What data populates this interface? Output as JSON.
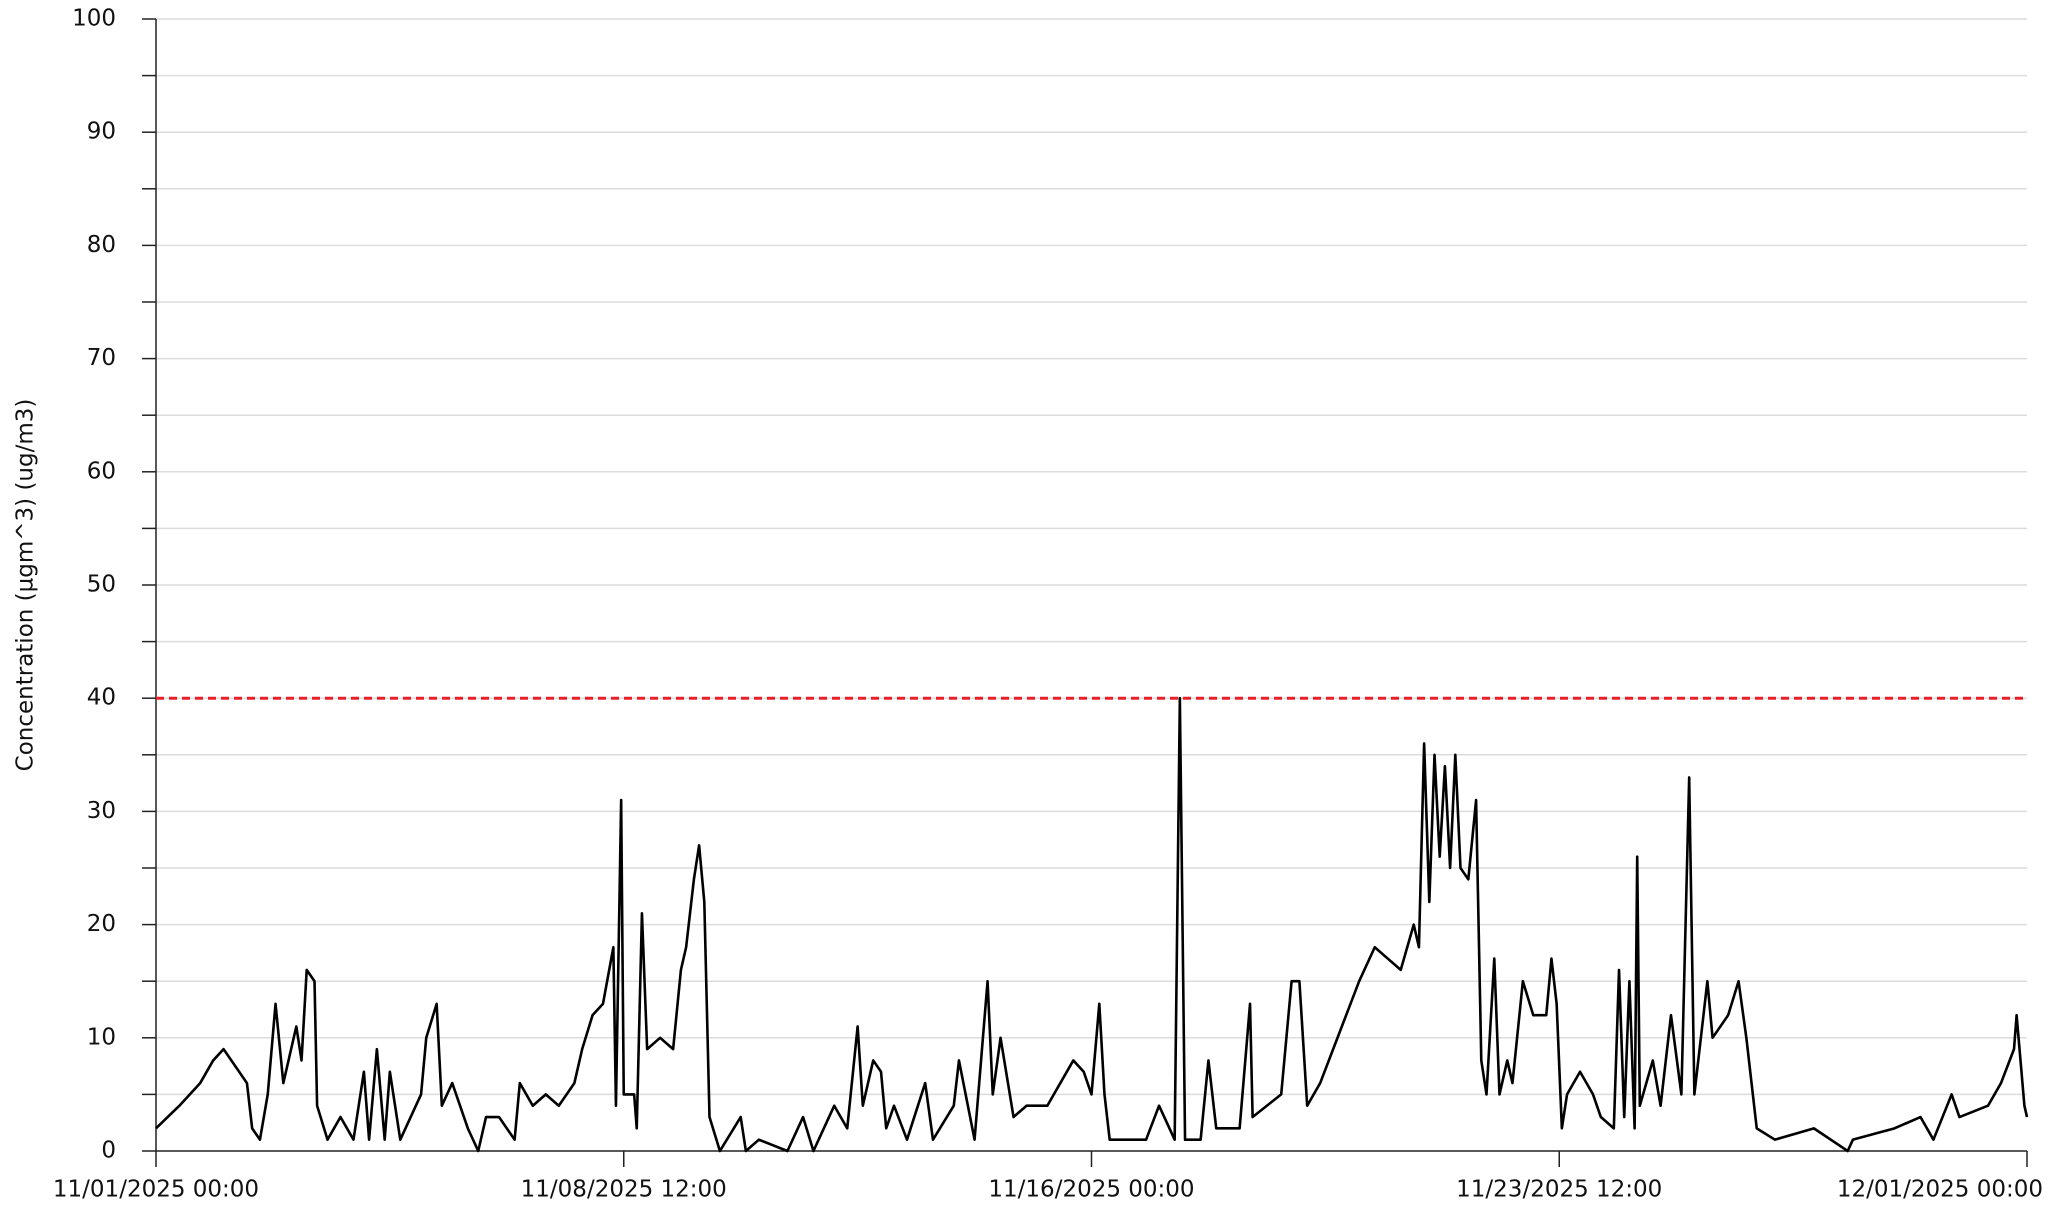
{
  "chart_data": {
    "type": "line",
    "ylabel": "Concentration (µgm^3) (ug/m3)",
    "xlim": [
      "11/01/2025 00:00",
      "12/01/2025 00:00"
    ],
    "xticks": [
      "11/01/2025 00:00",
      "11/08/2025 12:00",
      "11/16/2025 00:00",
      "11/23/2025 12:00",
      "12/01/2025 00:00"
    ],
    "ylim": [
      0,
      100
    ],
    "yticks": [
      0,
      10,
      20,
      30,
      40,
      50,
      60,
      70,
      80,
      90,
      100
    ],
    "minor_yticks": [
      5,
      15,
      25,
      35,
      45,
      55,
      65,
      75,
      85,
      95
    ],
    "grid": true,
    "threshold": {
      "value": 40,
      "color": "#e8202a",
      "style": "dashed"
    },
    "x": [
      "11/01/2025 00:00",
      "11/01/2025 09:00",
      "11/01/2025 17:00",
      "11/01/2025 22:00",
      "11/02/2025 02:00",
      "11/02/2025 08:00",
      "11/02/2025 11:00",
      "11/02/2025 13:00",
      "11/02/2025 16:00",
      "11/02/2025 19:00",
      "11/02/2025 22:00",
      "11/03/2025 01:00",
      "11/03/2025 06:00",
      "11/03/2025 08:00",
      "11/03/2025 10:00",
      "11/03/2025 13:00",
      "11/03/2025 14:00",
      "11/03/2025 18:00",
      "11/03/2025 23:00",
      "11/04/2025 04:00",
      "11/04/2025 08:00",
      "11/04/2025 10:00",
      "11/04/2025 13:00",
      "11/04/2025 16:00",
      "11/04/2025 18:00",
      "11/04/2025 22:00",
      "11/05/2025 06:00",
      "11/05/2025 08:00",
      "11/05/2025 12:00",
      "11/05/2025 14:00",
      "11/05/2025 18:00",
      "11/06/2025 00:00",
      "11/06/2025 04:00",
      "11/06/2025 07:00",
      "11/06/2025 12:00",
      "11/06/2025 18:00",
      "11/06/2025 20:00",
      "11/07/2025 01:00",
      "11/07/2025 06:00",
      "11/07/2025 11:00",
      "11/07/2025 17:00",
      "11/07/2025 20:00",
      "11/08/2025 00:00",
      "11/08/2025 04:00",
      "11/08/2025 08:00",
      "11/08/2025 09:00",
      "11/08/2025 11:00",
      "11/08/2025 12:00",
      "11/08/2025 16:00",
      "11/08/2025 17:00",
      "11/08/2025 19:00",
      "11/08/2025 21:00",
      "11/09/2025 02:00",
      "11/09/2025 07:00",
      "11/09/2025 10:00",
      "11/09/2025 12:00",
      "11/09/2025 15:00",
      "11/09/2025 17:00",
      "11/09/2025 19:00",
      "11/09/2025 21:00",
      "11/10/2025 01:00",
      "11/10/2025 09:00",
      "11/10/2025 11:00",
      "11/10/2025 16:00",
      "11/11/2025 03:00",
      "11/11/2025 09:00",
      "11/11/2025 13:00",
      "11/11/2025 21:00",
      "11/12/2025 02:00",
      "11/12/2025 06:00",
      "11/12/2025 08:00",
      "11/12/2025 12:00",
      "11/12/2025 15:00",
      "11/12/2025 17:00",
      "11/12/2025 20:00",
      "11/13/2025 01:00",
      "11/13/2025 08:00",
      "11/13/2025 11:00",
      "11/13/2025 19:00",
      "11/13/2025 21:00",
      "11/14/2025 03:00",
      "11/14/2025 08:00",
      "11/14/2025 10:00",
      "11/14/2025 13:00",
      "11/14/2025 18:00",
      "11/14/2025 23:00",
      "11/15/2025 07:00",
      "11/15/2025 12:00",
      "11/15/2025 17:00",
      "11/15/2025 21:00",
      "11/16/2025 00:00",
      "11/16/2025 03:00",
      "11/16/2025 05:00",
      "11/16/2025 07:00",
      "11/16/2025 21:00",
      "11/17/2025 02:00",
      "11/17/2025 08:00",
      "11/17/2025 10:00",
      "11/17/2025 12:00",
      "11/17/2025 18:00",
      "11/17/2025 21:00",
      "11/18/2025 00:00",
      "11/18/2025 09:00",
      "11/18/2025 13:00",
      "11/18/2025 14:00",
      "11/19/2025 01:00",
      "11/19/2025 05:00",
      "11/19/2025 08:00",
      "11/19/2025 11:00",
      "11/19/2025 16:00",
      "11/19/2025 21:00",
      "11/20/2025 02:00",
      "11/20/2025 07:00",
      "11/20/2025 13:00",
      "11/20/2025 18:00",
      "11/20/2025 23:00",
      "11/21/2025 04:00",
      "11/21/2025 06:00",
      "11/21/2025 08:00",
      "11/21/2025 10:00",
      "11/21/2025 12:00",
      "11/21/2025 14:00",
      "11/21/2025 16:00",
      "11/21/2025 18:00",
      "11/21/2025 20:00",
      "11/21/2025 22:00",
      "11/22/2025 01:00",
      "11/22/2025 04:00",
      "11/22/2025 06:00",
      "11/22/2025 08:00",
      "11/22/2025 11:00",
      "11/22/2025 13:00",
      "11/22/2025 16:00",
      "11/22/2025 18:00",
      "11/22/2025 22:00",
      "11/23/2025 02:00",
      "11/23/2025 07:00",
      "11/23/2025 09:00",
      "11/23/2025 11:00",
      "11/23/2025 13:00",
      "11/23/2025 15:00",
      "11/23/2025 20:00",
      "11/24/2025 01:00",
      "11/24/2025 04:00",
      "11/24/2025 09:00",
      "11/24/2025 11:00",
      "11/24/2025 13:00",
      "11/24/2025 15:00",
      "11/24/2025 17:00",
      "11/24/2025 18:00",
      "11/24/2025 19:00",
      "11/25/2025 00:00",
      "11/25/2025 03:00",
      "11/25/2025 07:00",
      "11/25/2025 11:00",
      "11/25/2025 14:00",
      "11/25/2025 16:00",
      "11/25/2025 21:00",
      "11/25/2025 23:00",
      "11/26/2025 05:00",
      "11/26/2025 09:00",
      "11/26/2025 12:00",
      "11/26/2025 16:00",
      "11/26/2025 23:00",
      "11/27/2025 14:00",
      "11/28/2025 03:00",
      "11/28/2025 05:00",
      "11/28/2025 21:00",
      "11/29/2025 07:00",
      "11/29/2025 12:00",
      "11/29/2025 19:00",
      "11/29/2025 22:00",
      "11/30/2025 09:00",
      "11/30/2025 14:00",
      "11/30/2025 19:00",
      "11/30/2025 20:00",
      "11/30/2025 23:00",
      "12/01/2025 00:00"
    ],
    "series": [
      {
        "name": "Concentration",
        "color": "#000000",
        "values": [
          2,
          4,
          6,
          8,
          9,
          7,
          6,
          2,
          1,
          5,
          13,
          6,
          11,
          8,
          16,
          15,
          4,
          1,
          3,
          1,
          7,
          1,
          9,
          1,
          7,
          1,
          5,
          10,
          13,
          4,
          6,
          2,
          0,
          3,
          3,
          1,
          6,
          4,
          5,
          4,
          6,
          9,
          12,
          13,
          18,
          4,
          31,
          5,
          5,
          2,
          21,
          9,
          10,
          9,
          16,
          18,
          24,
          27,
          22,
          3,
          0,
          3,
          0,
          1,
          0,
          3,
          0,
          4,
          2,
          11,
          4,
          8,
          7,
          2,
          4,
          1,
          6,
          1,
          4,
          8,
          1,
          15,
          5,
          10,
          3,
          4,
          4,
          6,
          8,
          7,
          5,
          13,
          5,
          1,
          1,
          4,
          1,
          40,
          1,
          1,
          8,
          2,
          2,
          13,
          3,
          5,
          15,
          15,
          4,
          6,
          9,
          12,
          15,
          18,
          17,
          16,
          20,
          18,
          36,
          22,
          35,
          26,
          34,
          25,
          35,
          25,
          24,
          31,
          8,
          5,
          17,
          5,
          8,
          6,
          15,
          12,
          12,
          17,
          13,
          2,
          5,
          7,
          5,
          3,
          2,
          16,
          3,
          15,
          2,
          26,
          4,
          8,
          4,
          12,
          5,
          33,
          5,
          15,
          10,
          12,
          15,
          10,
          2,
          1,
          2,
          0,
          1,
          2,
          3,
          1,
          5,
          3,
          4,
          6,
          9,
          12,
          4,
          3
        ]
      }
    ]
  }
}
